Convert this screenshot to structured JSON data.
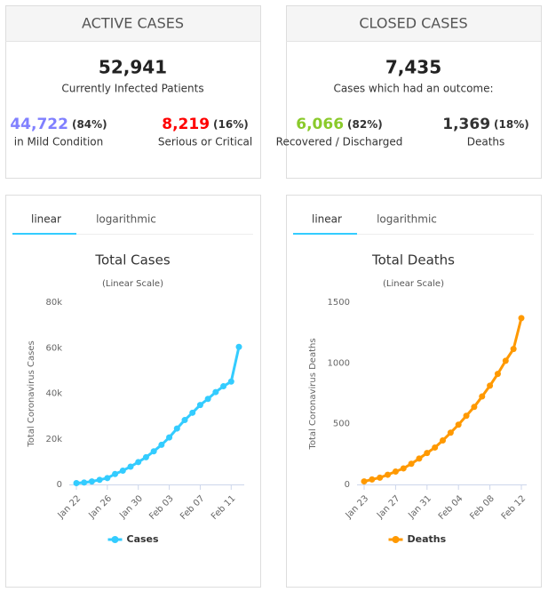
{
  "cards": [
    {
      "title": "ACTIVE CASES",
      "total": "52,941",
      "total_label": "Currently Infected Patients",
      "left": {
        "value": "44,722",
        "pct": "(84%)",
        "label": "in Mild Condition",
        "color": "#8080FF"
      },
      "right": {
        "value": "8,219",
        "pct": "(16%)",
        "label": "Serious or Critical",
        "color": "#FF0000"
      }
    },
    {
      "title": "CLOSED CASES",
      "total": "7,435",
      "total_label": "Cases which had an outcome:",
      "left": {
        "value": "6,066",
        "pct": "(82%)",
        "label": "Recovered / Discharged",
        "color": "#8ACA2B"
      },
      "right": {
        "value": "1,369",
        "pct": "(18%)",
        "label": "Deaths",
        "color": "#333333"
      }
    }
  ],
  "chart_data": [
    {
      "type": "line",
      "tabs": [
        "linear",
        "logarithmic"
      ],
      "title": "Total Cases",
      "subtitle": "(Linear Scale)",
      "y_label": "Total Coronavirus Cases",
      "categories": [
        "Jan 22",
        null,
        null,
        null,
        "Jan 26",
        null,
        null,
        null,
        "Jan 30",
        null,
        null,
        null,
        "Feb 03",
        null,
        null,
        null,
        "Feb 07",
        null,
        null,
        null,
        "Feb 11",
        null
      ],
      "series": [
        {
          "name": "Cases",
          "color": "#33CCFF",
          "values": [
            580,
            845,
            1317,
            2015,
            2800,
            4581,
            6058,
            7813,
            9823,
            11950,
            14553,
            17391,
            20630,
            24554,
            28276,
            31481,
            34886,
            37558,
            40554,
            43103,
            45171,
            60381
          ]
        }
      ],
      "ylim": [
        0,
        80000
      ],
      "yticks": [
        0,
        {
          "value": 20000,
          "label": "20k"
        },
        {
          "value": 40000,
          "label": "40k"
        },
        {
          "value": 60000,
          "label": "60k"
        },
        {
          "value": 80000,
          "label": "80k"
        }
      ],
      "grid": false
    },
    {
      "type": "line",
      "tabs": [
        "linear",
        "logarithmic"
      ],
      "title": "Total Deaths",
      "subtitle": "(Linear Scale)",
      "y_label": "Total Coronavirus Deaths",
      "categories": [
        "Jan 23",
        null,
        null,
        null,
        "Jan 27",
        null,
        null,
        null,
        "Jan 31",
        null,
        null,
        null,
        "Feb 04",
        null,
        null,
        null,
        "Feb 08",
        null,
        null,
        null,
        "Feb 12"
      ],
      "series": [
        {
          "name": "Deaths",
          "color": "#FF9900",
          "values": [
            25,
            41,
            56,
            80,
            106,
            132,
            170,
            213,
            259,
            304,
            362,
            426,
            492,
            565,
            638,
            724,
            813,
            910,
            1018,
            1115,
            1369
          ]
        }
      ],
      "ylim": [
        0,
        1500
      ],
      "yticks": [
        0,
        500,
        1000,
        1500
      ],
      "grid": false
    }
  ]
}
